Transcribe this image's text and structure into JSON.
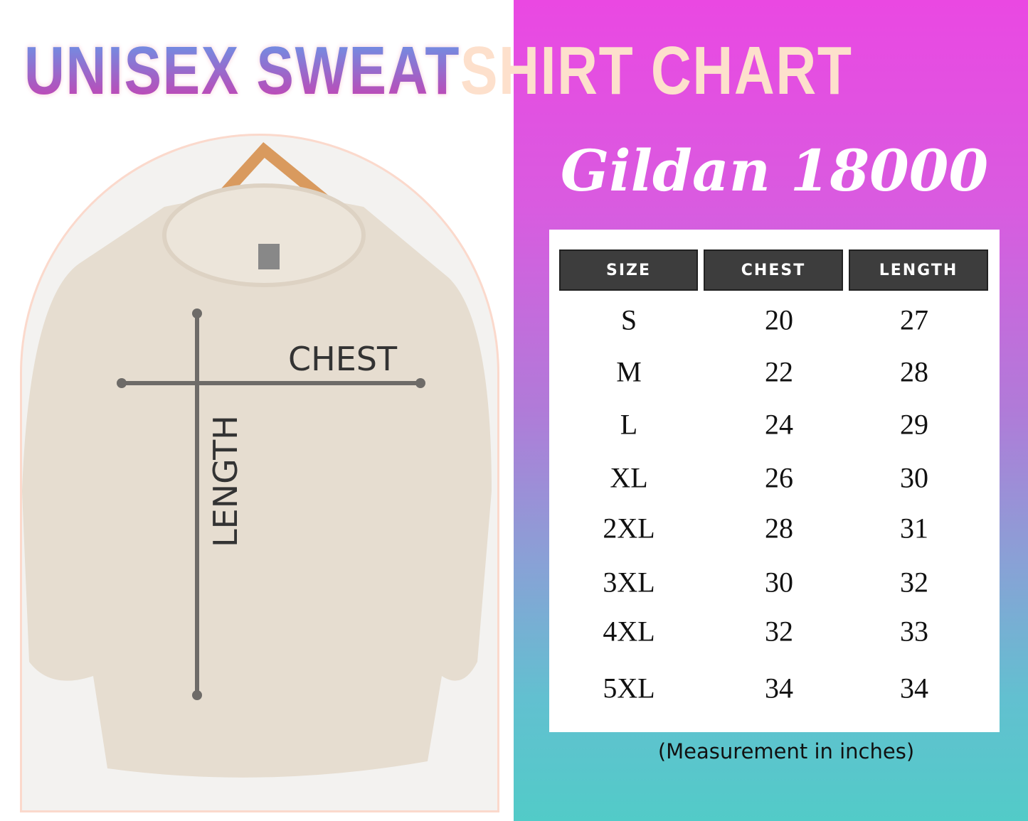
{
  "title": {
    "part1": "UNISEX SWEAT",
    "part2": "SHIRT CHART"
  },
  "subtitle": "Gildan 18000",
  "diagram": {
    "chest_label": "CHEST",
    "length_label": "LENGTH"
  },
  "table": {
    "headers": [
      "SIZE",
      "CHEST",
      "LENGTH"
    ],
    "rows": [
      [
        "S",
        "20",
        "27"
      ],
      [
        "M",
        "22",
        "28"
      ],
      [
        "L",
        "24",
        "29"
      ],
      [
        "XL",
        "26",
        "30"
      ],
      [
        "2XL",
        "28",
        "31"
      ],
      [
        "3XL",
        "30",
        "32"
      ],
      [
        "4XL",
        "32",
        "33"
      ],
      [
        "5XL",
        "34",
        "34"
      ]
    ]
  },
  "caption": "(Measurement in inches)",
  "colors": {
    "gradient_top": "#ea48e2",
    "gradient_bottom": "#52cbc8",
    "header_bg": "#3d3d3d",
    "title_peach": "#fde0cc"
  }
}
